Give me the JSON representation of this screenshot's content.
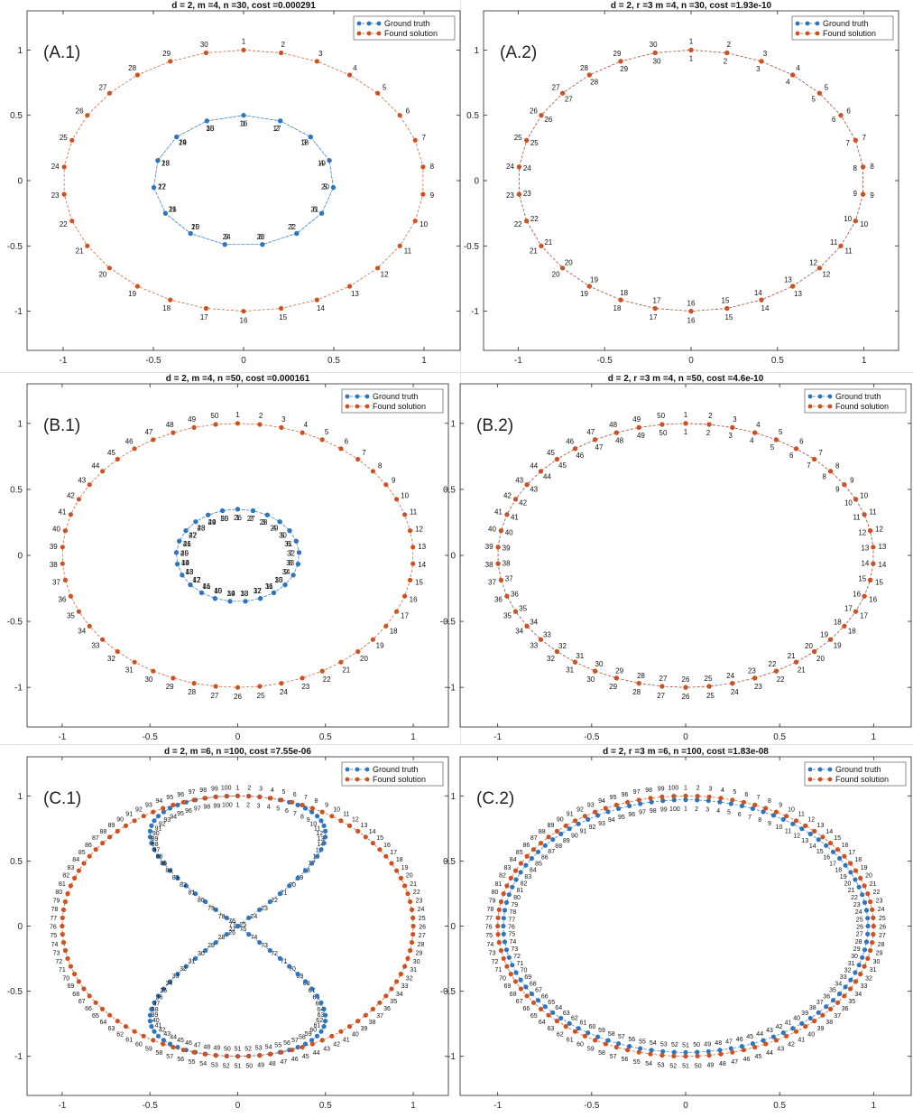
{
  "legend": {
    "ground_truth": "Ground truth",
    "found_solution": "Found solution"
  },
  "colors": {
    "ground_truth": "#2e75c0",
    "found_solution": "#d0501e",
    "axis": "#262626",
    "grid_text": "#262626"
  },
  "chart_data": [
    {
      "type": "scatter",
      "panel_label": "(A.1)",
      "title": "d = 2, m =4, n =30, cost =0.000291",
      "xlim": [
        -1.2,
        1.2
      ],
      "ylim": [
        -1.3,
        1.3
      ],
      "xticks": [
        -1,
        -0.5,
        0,
        0.5,
        1
      ],
      "yticks": [
        -1,
        -0.5,
        0,
        0.5,
        1
      ],
      "xtick_labels": [
        "-1",
        "-0.5",
        "0",
        "0.5",
        "1"
      ],
      "ytick_labels": [
        "-1",
        "-0.5",
        "0",
        "0.5",
        "1"
      ],
      "legend_position": "top-right",
      "n": 30,
      "found_solution": {
        "shape": "circle",
        "radius_x": 1.0,
        "radius_y": 1.0,
        "start_angle_deg": 90,
        "direction": "clockwise"
      },
      "ground_truth": {
        "shape": "small-loop",
        "radius_x": 0.5,
        "radius_y": 0.5,
        "label_every": 1
      }
    },
    {
      "type": "scatter",
      "panel_label": "(A.2)",
      "title": "d = 2, r =3 m =4, n =30, cost =1.93e-10",
      "xlim": [
        -1.2,
        1.2
      ],
      "ylim": [
        -1.3,
        1.3
      ],
      "xticks": [
        -1,
        -0.5,
        0,
        0.5,
        1
      ],
      "yticks": [
        -1,
        -0.5,
        0,
        0.5,
        1
      ],
      "xtick_labels": [
        "-1",
        "-0.5",
        "0",
        "0.5",
        "1"
      ],
      "ytick_labels": [
        "-1",
        "-0.5",
        "0",
        "0.5",
        "1"
      ],
      "legend_position": "top-right",
      "n": 30,
      "found_solution": {
        "shape": "circle",
        "radius_x": 1.0,
        "radius_y": 1.0,
        "start_angle_deg": 90,
        "direction": "clockwise"
      },
      "ground_truth": {
        "shape": "circle",
        "radius_x": 1.0,
        "radius_y": 1.0,
        "start_angle_deg": 90,
        "direction": "clockwise"
      }
    },
    {
      "type": "scatter",
      "panel_label": "(B.1)",
      "title": "d = 2, m =4, n =50, cost =0.000161",
      "xlim": [
        -1.2,
        1.2
      ],
      "ylim": [
        -1.3,
        1.3
      ],
      "xticks": [
        -1,
        -0.5,
        0,
        0.5,
        1
      ],
      "yticks": [
        -1,
        -0.5,
        0,
        0.5,
        1
      ],
      "xtick_labels": [
        "-1",
        "-0.5",
        "0",
        "0.5",
        "1"
      ],
      "ytick_labels": [
        "-1",
        "-0.5",
        "0",
        "0.5",
        "1"
      ],
      "legend_position": "top-right",
      "n": 50,
      "found_solution": {
        "shape": "circle",
        "radius_x": 1.0,
        "radius_y": 1.0,
        "start_angle_deg": 90,
        "direction": "clockwise"
      },
      "ground_truth": {
        "shape": "ellipse",
        "radius_x": 0.35,
        "radius_y": 0.35
      }
    },
    {
      "type": "scatter",
      "panel_label": "(B.2)",
      "title": "d = 2, r =3 m =4, n =50, cost =4.6e-10",
      "xlim": [
        -1.2,
        1.2
      ],
      "ylim": [
        -1.3,
        1.3
      ],
      "xticks": [
        -1,
        -0.5,
        0,
        0.5,
        1
      ],
      "yticks": [
        -1,
        -0.5,
        0,
        0.5,
        1
      ],
      "xtick_labels": [
        "-1",
        "-0.5",
        "0",
        "0.5",
        "1"
      ],
      "ytick_labels": [
        "-1",
        "-0.5",
        "0",
        "0.5",
        "1"
      ],
      "legend_position": "top-right",
      "n": 50,
      "found_solution": {
        "shape": "circle",
        "radius_x": 1.0,
        "radius_y": 1.0,
        "start_angle_deg": 90,
        "direction": "clockwise"
      },
      "ground_truth": {
        "shape": "circle",
        "radius_x": 1.0,
        "radius_y": 1.0,
        "start_angle_deg": 90,
        "direction": "clockwise"
      }
    },
    {
      "type": "scatter",
      "panel_label": "(C.1)",
      "title": "d = 2, m =6, n =100, cost =7.55e-06",
      "xlim": [
        -1.2,
        1.2
      ],
      "ylim": [
        -1.3,
        1.3
      ],
      "xticks": [
        -1,
        -0.5,
        0,
        0.5,
        1
      ],
      "yticks": [
        -1,
        -0.5,
        0,
        0.5,
        1
      ],
      "xtick_labels": [
        "-1",
        "-0.5",
        "0",
        "0.5",
        "1"
      ],
      "ytick_labels": [
        "-1",
        "-0.5",
        "0",
        "0.5",
        "1"
      ],
      "legend_position": "top-right",
      "n": 100,
      "found_solution": {
        "shape": "circle",
        "radius_x": 1.0,
        "radius_y": 1.0,
        "start_angle_deg": 90,
        "direction": "clockwise"
      },
      "ground_truth": {
        "shape": "figure-eight",
        "radius_x": 0.5,
        "radius_y": 1.0
      }
    },
    {
      "type": "scatter",
      "panel_label": "(C.2)",
      "title": "d = 2, r =3 m =6, n =100, cost =1.83e-08",
      "xlim": [
        -1.2,
        1.2
      ],
      "ylim": [
        -1.3,
        1.3
      ],
      "xticks": [
        -1,
        -0.5,
        0,
        0.5,
        1
      ],
      "yticks": [
        -1,
        -0.5,
        0,
        0.5,
        1
      ],
      "xtick_labels": [
        "-1",
        "-0.5",
        "0",
        "0.5",
        "1"
      ],
      "ytick_labels": [
        "-1",
        "-0.5",
        "0",
        "0.5",
        "1"
      ],
      "legend_position": "top-right",
      "n": 100,
      "found_solution": {
        "shape": "circle",
        "radius_x": 1.0,
        "radius_y": 1.0,
        "start_angle_deg": 90,
        "direction": "clockwise"
      },
      "ground_truth": {
        "shape": "circle",
        "radius_x": 0.97,
        "radius_y": 0.97,
        "start_angle_deg": 90,
        "direction": "clockwise"
      }
    }
  ]
}
